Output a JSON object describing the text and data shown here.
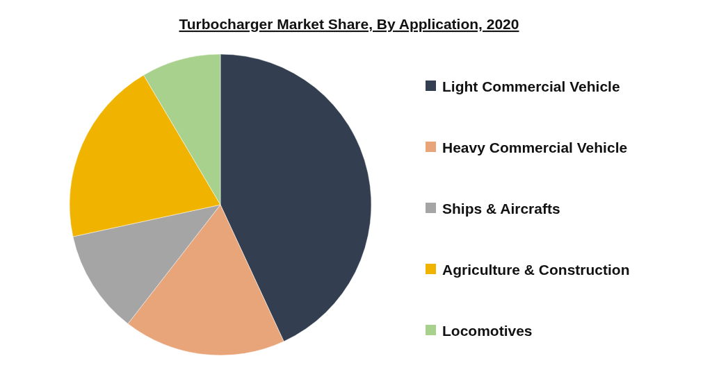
{
  "chart_data": {
    "type": "pie",
    "title": "Turbocharger Market Share, By Application, 2020",
    "categories": [
      "Light Commercial Vehicle",
      "Heavy Commercial Vehicle",
      "Ships & Aircrafts",
      "Agriculture & Construction",
      "Locomotives"
    ],
    "values": [
      43.1,
      17.4,
      11.1,
      19.9,
      8.5
    ],
    "colors": [
      "#333f50",
      "#e9a57a",
      "#a5a5a5",
      "#f0b400",
      "#a9d18e"
    ],
    "legend": "right"
  }
}
